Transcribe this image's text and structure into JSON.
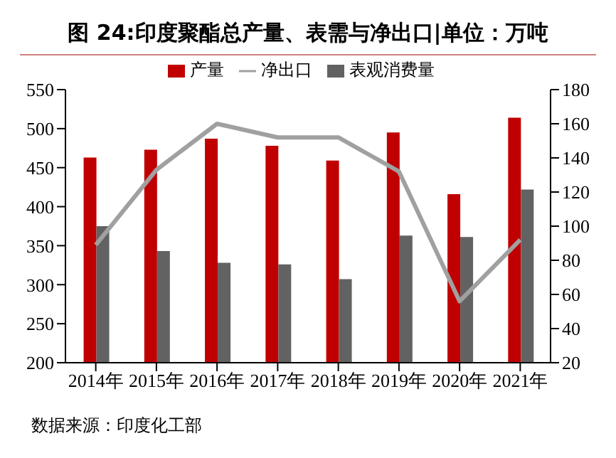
{
  "chart_data": {
    "type": "bar",
    "title": "图 24:印度聚酯总产量、表需与净出口|单位：万吨",
    "categories": [
      "2014年",
      "2015年",
      "2016年",
      "2017年",
      "2018年",
      "2019年",
      "2020年",
      "2021年"
    ],
    "series": [
      {
        "name": "产量",
        "color": "#c00000",
        "values": [
          463,
          473,
          487,
          478,
          459,
          495,
          416,
          514
        ]
      },
      {
        "name": "表观消费量",
        "color": "#626262",
        "values": [
          375,
          343,
          328,
          326,
          307,
          363,
          361,
          422
        ]
      },
      {
        "name": "净出口",
        "type": "line",
        "axis": "y2",
        "color": "#a0a0a0",
        "values": [
          89,
          133,
          160,
          152,
          152,
          132,
          56,
          92
        ]
      }
    ],
    "ylim": [
      200,
      550
    ],
    "yticks": [
      200,
      250,
      300,
      350,
      400,
      450,
      500,
      550
    ],
    "y2lim": [
      20,
      180
    ],
    "y2ticks": [
      20,
      40,
      60,
      80,
      100,
      120,
      140,
      160,
      180
    ],
    "legend": "top",
    "grid": false,
    "marker": "none",
    "annotations": [
      "数据来源：印度化工部"
    ]
  }
}
